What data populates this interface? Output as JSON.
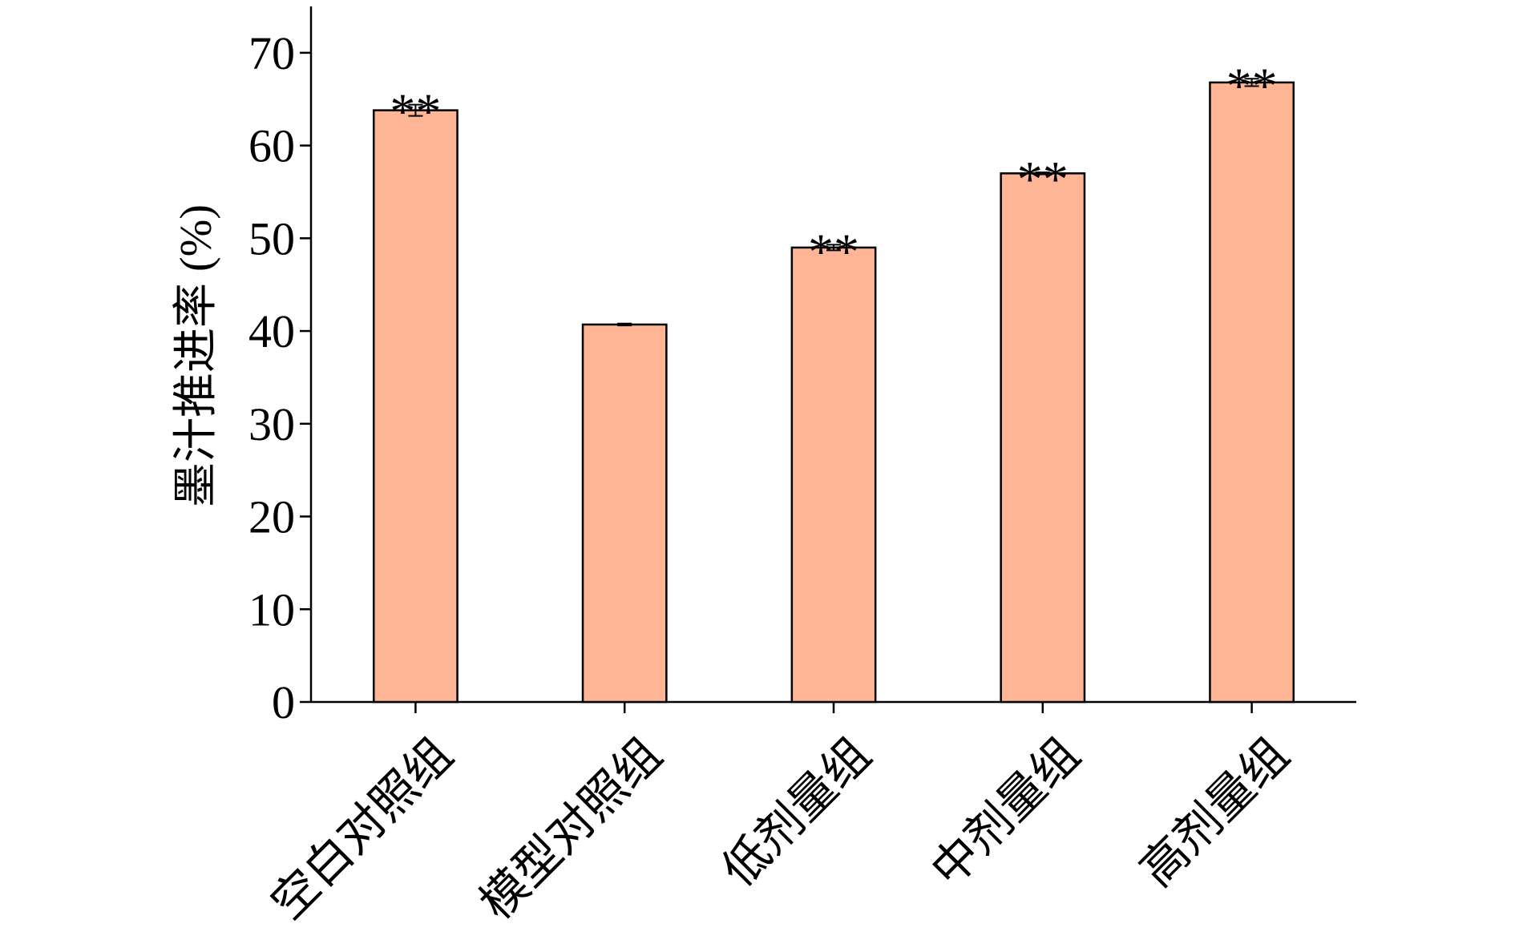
{
  "chart_data": {
    "type": "bar",
    "y_label": "墨汁推进率 (%)",
    "categories": [
      "空白对照组",
      "模型对照组",
      "低剂量组",
      "中剂量组",
      "高剂量组"
    ],
    "values": [
      63.8,
      40.7,
      49.0,
      57.0,
      66.8
    ],
    "errors": [
      0.6,
      0.1,
      0.3,
      0.1,
      0.4
    ],
    "annotations": [
      "**",
      null,
      "**",
      "**",
      "**"
    ],
    "color": "#fdb595",
    "ylim": [
      0,
      75
    ],
    "yticks": [
      0,
      10,
      20,
      30,
      40,
      50,
      60,
      70
    ]
  }
}
